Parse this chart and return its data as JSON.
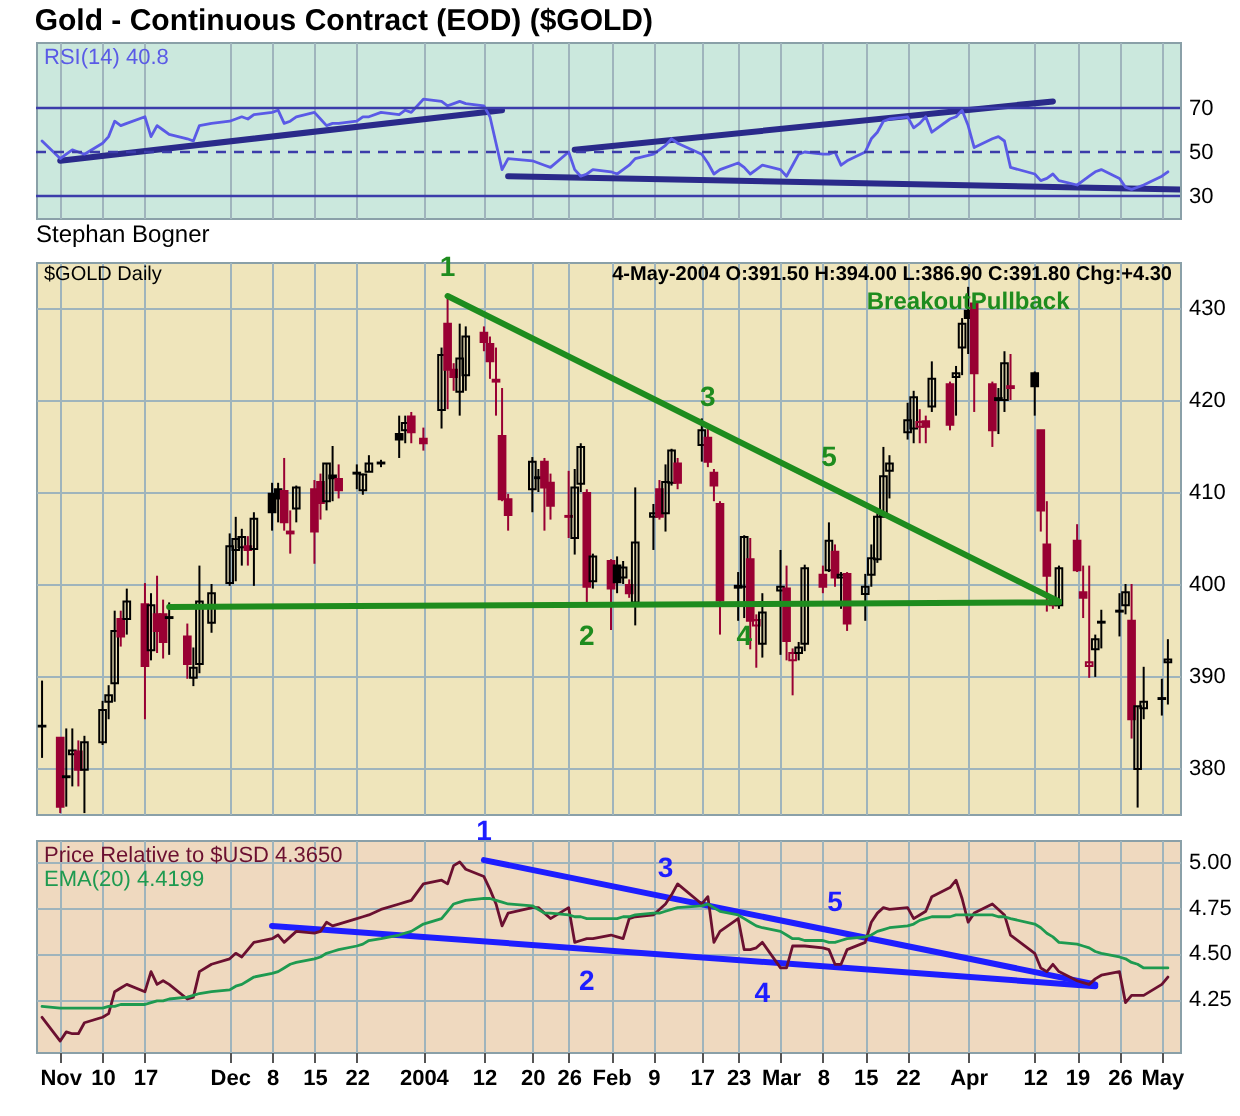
{
  "chart_data": [
    {
      "type": "line",
      "title": "Gold - Continuous Contract (EOD) ($GOLD)",
      "grid": "x",
      "tick_labels": "y",
      "x": [
        "2003-10-31",
        "2003-11-03",
        "2003-11-04",
        "2003-11-05",
        "2003-11-06",
        "2003-11-07",
        "2003-11-10",
        "2003-11-11",
        "2003-11-12",
        "2003-11-13",
        "2003-11-14",
        "2003-11-17",
        "2003-11-18",
        "2003-11-19",
        "2003-11-20",
        "2003-11-21",
        "2003-11-24",
        "2003-11-25",
        "2003-11-26",
        "2003-11-28",
        "2003-12-01",
        "2003-12-02",
        "2003-12-03",
        "2003-12-04",
        "2003-12-05",
        "2003-12-08",
        "2003-12-09",
        "2003-12-10",
        "2003-12-11",
        "2003-12-12",
        "2003-12-15",
        "2003-12-16",
        "2003-12-17",
        "2003-12-18",
        "2003-12-19",
        "2003-12-22",
        "2003-12-23",
        "2003-12-24",
        "2003-12-26",
        "2003-12-29",
        "2003-12-30",
        "2003-12-31",
        "2004-01-02",
        "2004-01-05",
        "2004-01-06",
        "2004-01-07",
        "2004-01-08",
        "2004-01-09",
        "2004-01-12",
        "2004-01-13",
        "2004-01-14",
        "2004-01-15",
        "2004-01-16",
        "2004-01-20",
        "2004-01-21",
        "2004-01-22",
        "2004-01-23",
        "2004-01-26",
        "2004-01-27",
        "2004-01-28",
        "2004-01-29",
        "2004-01-30",
        "2004-02-02",
        "2004-02-03",
        "2004-02-04",
        "2004-02-05",
        "2004-02-06",
        "2004-02-09",
        "2004-02-10",
        "2004-02-11",
        "2004-02-12",
        "2004-02-13",
        "2004-02-17",
        "2004-02-18",
        "2004-02-19",
        "2004-02-20",
        "2004-02-23",
        "2004-02-24",
        "2004-02-25",
        "2004-02-26",
        "2004-02-27",
        "2004-03-01",
        "2004-03-02",
        "2004-03-03",
        "2004-03-04",
        "2004-03-05",
        "2004-03-08",
        "2004-03-09",
        "2004-03-10",
        "2004-03-11",
        "2004-03-12",
        "2004-03-15",
        "2004-03-16",
        "2004-03-17",
        "2004-03-18",
        "2004-03-19",
        "2004-03-22",
        "2004-03-23",
        "2004-03-24",
        "2004-03-25",
        "2004-03-26",
        "2004-03-29",
        "2004-03-30",
        "2004-03-31",
        "2004-04-01",
        "2004-04-02",
        "2004-04-05",
        "2004-04-06",
        "2004-04-07",
        "2004-04-08",
        "2004-04-12",
        "2004-04-13",
        "2004-04-14",
        "2004-04-15",
        "2004-04-16",
        "2004-04-19",
        "2004-04-20",
        "2004-04-21",
        "2004-04-22",
        "2004-04-23",
        "2004-04-26",
        "2004-04-27",
        "2004-04-28",
        "2004-04-29",
        "2004-04-30",
        "2004-05-03",
        "2004-05-04"
      ],
      "series": [
        {
          "name": "RSI(14) 40.8",
          "color": "#5a5ae6",
          "values": [
            55,
            47,
            49,
            51,
            50,
            49,
            54,
            57,
            64,
            62,
            63,
            66,
            57,
            62,
            60,
            58,
            56,
            55,
            62,
            63,
            64,
            65,
            66,
            65,
            67,
            68,
            69,
            63,
            64,
            66,
            68,
            65,
            62,
            63,
            63,
            64,
            66,
            66,
            68,
            67,
            69,
            68,
            74,
            73,
            71,
            72,
            73,
            72,
            71,
            66,
            54,
            42,
            47,
            46,
            45,
            44,
            43,
            50,
            42,
            39,
            40,
            42,
            41,
            40,
            42,
            44,
            47,
            49,
            51,
            53,
            56,
            54,
            49,
            45,
            40,
            42,
            45,
            43,
            40,
            42,
            44,
            42,
            39,
            44,
            49,
            50,
            49,
            49,
            50,
            44,
            46,
            50,
            56,
            59,
            64,
            65,
            66,
            61,
            63,
            66,
            59,
            65,
            66,
            69,
            62,
            52,
            56,
            57,
            55,
            43,
            40,
            37,
            38,
            40,
            37,
            35,
            37,
            39,
            41,
            42,
            38,
            34,
            33,
            34,
            35,
            39,
            41
          ]
        },
        {
          "type": "line",
          "color": "#2a2a8a",
          "x": [
            "2003-11-03",
            "2004-01-15"
          ],
          "values": [
            46,
            69
          ]
        },
        {
          "type": "line",
          "color": "#2a2a8a",
          "x": [
            "2004-01-27",
            "2004-04-15"
          ],
          "values": [
            51,
            73
          ]
        },
        {
          "type": "line",
          "color": "#2a2a8a",
          "x": [
            "2004-01-16",
            "2004-05-06"
          ],
          "values": [
            39,
            33
          ]
        }
      ],
      "ref_lines": [
        {
          "axis": "y",
          "value": 70,
          "color": "#3c3caa"
        },
        {
          "axis": "y",
          "value": 50,
          "color": "#3c3caa",
          "line_style": "dashed"
        },
        {
          "axis": "y",
          "value": 30,
          "color": "#3c3caa"
        }
      ],
      "xlim": [
        "2003-10-30",
        "2004-05-06"
      ],
      "xticks": [
        {
          "value": "2003-11-03",
          "label": null
        },
        {
          "value": "2003-11-10",
          "label": null
        },
        {
          "value": "2003-11-17",
          "label": null
        },
        {
          "value": "2003-12-01",
          "label": null
        },
        {
          "value": "2003-12-08",
          "label": null
        },
        {
          "value": "2003-12-15",
          "label": null
        },
        {
          "value": "2003-12-22",
          "label": null
        },
        {
          "value": "2004-01-02",
          "label": null
        },
        {
          "value": "2004-01-12",
          "label": null
        },
        {
          "value": "2004-01-20",
          "label": null
        },
        {
          "value": "2004-01-26",
          "label": null
        },
        {
          "value": "2004-02-02",
          "label": null
        },
        {
          "value": "2004-02-09",
          "label": null
        },
        {
          "value": "2004-02-17",
          "label": null
        },
        {
          "value": "2004-02-23",
          "label": null
        },
        {
          "value": "2004-03-01",
          "label": null
        },
        {
          "value": "2004-03-08",
          "label": null
        },
        {
          "value": "2004-03-15",
          "label": null
        },
        {
          "value": "2004-03-22",
          "label": null
        },
        {
          "value": "2004-04-01",
          "label": null
        },
        {
          "value": "2004-04-12",
          "label": null
        },
        {
          "value": "2004-04-19",
          "label": null
        },
        {
          "value": "2004-04-26",
          "label": null
        },
        {
          "value": "2004-05-03",
          "label": null
        }
      ],
      "ylim": [
        20,
        100
      ],
      "yticks": [
        30,
        50,
        70
      ]
    },
    {
      "type": "candlestick",
      "title": "Stephan Bogner",
      "grid": true,
      "tick_labels": "y",
      "x": [
        "2003-10-31",
        "2003-11-03",
        "2003-11-04",
        "2003-11-05",
        "2003-11-06",
        "2003-11-07",
        "2003-11-10",
        "2003-11-11",
        "2003-11-12",
        "2003-11-13",
        "2003-11-14",
        "2003-11-17",
        "2003-11-18",
        "2003-11-19",
        "2003-11-20",
        "2003-11-21",
        "2003-11-24",
        "2003-11-25",
        "2003-11-26",
        "2003-11-28",
        "2003-12-01",
        "2003-12-02",
        "2003-12-03",
        "2003-12-04",
        "2003-12-05",
        "2003-12-08",
        "2003-12-09",
        "2003-12-10",
        "2003-12-11",
        "2003-12-12",
        "2003-12-15",
        "2003-12-16",
        "2003-12-17",
        "2003-12-18",
        "2003-12-19",
        "2003-12-22",
        "2003-12-23",
        "2003-12-24",
        "2003-12-26",
        "2003-12-29",
        "2003-12-30",
        "2003-12-31",
        "2004-01-02",
        "2004-01-05",
        "2004-01-06",
        "2004-01-07",
        "2004-01-08",
        "2004-01-09",
        "2004-01-12",
        "2004-01-13",
        "2004-01-14",
        "2004-01-15",
        "2004-01-16",
        "2004-01-20",
        "2004-01-21",
        "2004-01-22",
        "2004-01-23",
        "2004-01-26",
        "2004-01-27",
        "2004-01-28",
        "2004-01-29",
        "2004-01-30",
        "2004-02-02",
        "2004-02-03",
        "2004-02-04",
        "2004-02-05",
        "2004-02-06",
        "2004-02-09",
        "2004-02-10",
        "2004-02-11",
        "2004-02-12",
        "2004-02-13",
        "2004-02-17",
        "2004-02-18",
        "2004-02-19",
        "2004-02-20",
        "2004-02-23",
        "2004-02-24",
        "2004-02-25",
        "2004-02-26",
        "2004-02-27",
        "2004-03-01",
        "2004-03-02",
        "2004-03-03",
        "2004-03-04",
        "2004-03-05",
        "2004-03-08",
        "2004-03-09",
        "2004-03-10",
        "2004-03-11",
        "2004-03-12",
        "2004-03-15",
        "2004-03-16",
        "2004-03-17",
        "2004-03-18",
        "2004-03-19",
        "2004-03-22",
        "2004-03-23",
        "2004-03-24",
        "2004-03-25",
        "2004-03-26",
        "2004-03-29",
        "2004-03-30",
        "2004-03-31",
        "2004-04-01",
        "2004-04-02",
        "2004-04-05",
        "2004-04-06",
        "2004-04-07",
        "2004-04-08",
        "2004-04-12",
        "2004-04-13",
        "2004-04-14",
        "2004-04-15",
        "2004-04-16",
        "2004-04-19",
        "2004-04-20",
        "2004-04-21",
        "2004-04-22",
        "2004-04-23",
        "2004-04-26",
        "2004-04-27",
        "2004-04-28",
        "2004-04-29",
        "2004-04-30",
        "2004-05-03",
        "2004-05-04"
      ],
      "ohlc": [
        [
          384.6,
          389.5,
          381.1,
          384.5
        ],
        [
          383.3,
          383.3,
          375.1,
          375.8
        ],
        [
          379.1,
          384.3,
          375.8,
          379
        ],
        [
          381.5,
          384.3,
          378,
          381.9
        ],
        [
          381.8,
          383,
          378,
          379.8
        ],
        [
          379.8,
          383.5,
          375.1,
          382.8
        ],
        [
          382.8,
          387.3,
          382.5,
          386.3
        ],
        [
          387.2,
          389,
          385.3,
          387.9
        ],
        [
          389.2,
          397.1,
          387.2,
          394.9
        ],
        [
          396.2,
          397.1,
          393.2,
          394.3
        ],
        [
          396.2,
          399.5,
          394.5,
          398.1
        ],
        [
          397.8,
          400.1,
          385.3,
          391.1
        ],
        [
          392.8,
          399,
          391.7,
          397.7
        ],
        [
          396.7,
          400.9,
          392.5,
          394.9
        ],
        [
          396.7,
          398.3,
          391.9,
          393.7
        ],
        [
          396.4,
          398,
          392.3,
          396.3
        ],
        [
          394.3,
          395.7,
          389.7,
          391.3
        ],
        [
          389.8,
          393.1,
          388.9,
          390.9
        ],
        [
          391.3,
          402,
          390.3,
          398.1
        ],
        [
          395.8,
          400,
          394.7,
          399
        ],
        [
          400.1,
          405.5,
          399.8,
          404.1
        ],
        [
          403.7,
          407.3,
          400.3,
          404.9
        ],
        [
          404,
          406,
          402,
          405.1
        ],
        [
          404.1,
          405.2,
          402,
          403.7
        ],
        [
          403.8,
          407.8,
          399.8,
          407.1
        ],
        [
          409.8,
          411,
          405.8,
          407.8
        ],
        [
          410.3,
          411,
          406.7,
          409.3
        ],
        [
          410.1,
          413.7,
          405.8,
          406.7
        ],
        [
          405.7,
          408,
          403.3,
          405.5
        ],
        [
          408.2,
          410.7,
          406.7,
          410.5
        ],
        [
          410.3,
          411.3,
          402.2,
          405.7
        ],
        [
          411.1,
          412,
          407,
          408.8
        ],
        [
          409,
          413.1,
          408,
          413.1
        ],
        [
          411.8,
          415,
          409,
          411.5
        ],
        [
          411.4,
          413,
          409.3,
          410.2
        ],
        [
          412.1,
          413,
          410.3,
          412
        ],
        [
          410.2,
          412,
          409.7,
          411.9
        ],
        [
          412.2,
          414,
          412.2,
          413.1
        ],
        [
          413.2,
          413.5,
          412.7,
          413.1
        ],
        [
          416.3,
          418.3,
          413.7,
          415.7
        ],
        [
          416.7,
          418.3,
          415.3,
          417.5
        ],
        [
          418.2,
          418.7,
          415.3,
          416.5
        ],
        [
          415.8,
          417,
          414.5,
          415.3
        ],
        [
          418.9,
          425.7,
          416.9,
          424.9
        ],
        [
          428.3,
          431.3,
          419,
          423.3
        ],
        [
          423.3,
          424,
          421,
          422.5
        ],
        [
          420.9,
          428.3,
          418.3,
          424.5
        ],
        [
          422.7,
          428,
          421,
          426.9
        ],
        [
          427.3,
          428,
          425.3,
          426.3
        ],
        [
          426.1,
          426.9,
          422.3,
          424.2
        ],
        [
          422.2,
          425.7,
          418.3,
          422
        ],
        [
          416.1,
          421.3,
          409,
          409.2
        ],
        [
          409.2,
          409.8,
          405.8,
          407.5
        ],
        [
          410.3,
          413.8,
          407.8,
          413.3
        ],
        [
          411.6,
          412.5,
          410,
          411.5
        ],
        [
          413.3,
          413.7,
          405.8,
          410.5
        ],
        [
          411,
          412,
          407,
          408.5
        ],
        [
          407.4,
          412.3,
          405,
          407.3
        ],
        [
          405,
          412.5,
          403.2,
          410.5
        ],
        [
          410.9,
          415.3,
          410,
          414.9
        ],
        [
          409.9,
          410.3,
          398,
          399.7
        ],
        [
          400.3,
          403.3,
          399.5,
          403
        ],
        [
          402.5,
          402.7,
          395,
          399.5
        ],
        [
          402,
          403,
          399,
          400.2
        ],
        [
          400.7,
          402.5,
          400,
          401.8
        ],
        [
          399.9,
          400.5,
          398.5,
          399
        ],
        [
          398,
          410.5,
          395.5,
          404.5
        ],
        [
          407.3,
          408.7,
          403.7,
          407.7
        ],
        [
          410.3,
          411.3,
          407,
          407.3
        ],
        [
          407.7,
          413,
          405.7,
          411.1
        ],
        [
          411,
          414.7,
          410.7,
          414.5
        ],
        [
          413.1,
          413.7,
          410.3,
          411
        ],
        [
          415.1,
          418,
          413.3,
          416.7
        ],
        [
          415.9,
          417.3,
          412.7,
          413.3
        ],
        [
          412.1,
          412.5,
          409,
          410.7
        ],
        [
          408.7,
          409,
          394.5,
          398.2
        ],
        [
          399.6,
          401.3,
          396,
          399.8
        ],
        [
          399.7,
          405.3,
          396.3,
          405.1
        ],
        [
          402.7,
          405,
          392.9,
          396
        ],
        [
          395.5,
          396.7,
          390.9,
          396.1
        ],
        [
          393.5,
          399,
          392,
          396.9
        ],
        [
          399.3,
          403.7,
          392.3,
          399.7
        ],
        [
          399.5,
          402,
          391.7,
          393.8
        ],
        [
          391.7,
          393,
          387.9,
          392.5
        ],
        [
          392.5,
          393.7,
          391.7,
          393.1
        ],
        [
          393.5,
          402.1,
          392.7,
          401.7
        ],
        [
          401,
          402,
          399,
          399.7
        ],
        [
          401.5,
          406.7,
          401.3,
          404.7
        ],
        [
          403.5,
          404.3,
          399.7,
          400.7
        ],
        [
          400.7,
          401.3,
          397.3,
          401
        ],
        [
          401.1,
          401.3,
          394.9,
          395.7
        ],
        [
          398.9,
          401.1,
          396,
          399.7
        ],
        [
          401,
          404.3,
          399.7,
          402.8
        ],
        [
          402.7,
          407.7,
          402.3,
          407.3
        ],
        [
          407.3,
          414.9,
          407.3,
          411.7
        ],
        [
          412.3,
          414,
          409.3,
          413.1
        ],
        [
          416.5,
          419.7,
          415.7,
          417.8
        ],
        [
          416.9,
          421,
          415.3,
          420.3
        ],
        [
          417.1,
          419,
          415.3,
          417.6
        ],
        [
          417.7,
          418.3,
          415.3,
          417.1
        ],
        [
          419.3,
          424.2,
          418.7,
          422.3
        ],
        [
          421.7,
          422,
          416.7,
          417.3
        ],
        [
          422.5,
          423.7,
          418.3,
          422.9
        ],
        [
          425.7,
          428.9,
          422.7,
          428.3
        ],
        [
          429.7,
          432.3,
          425,
          428.9
        ],
        [
          430.5,
          430.5,
          418.7,
          422.9
        ],
        [
          421.7,
          422,
          414.9,
          416.7
        ],
        [
          420,
          421.3,
          416.3,
          420.2
        ],
        [
          420,
          425.3,
          418.7,
          424
        ],
        [
          421.3,
          425,
          420,
          421.5
        ],
        [
          422.9,
          423.1,
          418.3,
          421.5
        ],
        [
          416.7,
          416.7,
          405.7,
          408
        ],
        [
          404.3,
          409,
          397,
          400.9
        ],
        [
          397.7,
          398.3,
          397.3,
          398.1
        ],
        [
          397.7,
          402,
          397.3,
          401.7
        ],
        [
          404.7,
          406.5,
          401.3,
          401.5
        ],
        [
          399.1,
          402,
          396.3,
          398.5
        ],
        [
          391.1,
          402,
          389.8,
          391.5
        ],
        [
          392.9,
          394.5,
          389.9,
          394
        ],
        [
          395.9,
          397.2,
          393,
          395.8
        ],
        [
          397.1,
          399,
          394.3,
          397
        ],
        [
          397.7,
          400,
          396.7,
          399.1
        ],
        [
          396,
          400,
          383.2,
          385.3
        ],
        [
          379.9,
          386.7,
          375.7,
          386.7
        ],
        [
          386.5,
          391,
          385.3,
          387.2
        ],
        [
          387.6,
          389.7,
          385.7,
          387.5
        ],
        [
          391.5,
          394,
          386.9,
          391.8
        ]
      ],
      "colors": [
        "#000000",
        "#990033",
        "#000000",
        "#000000",
        "#990033",
        "#000000",
        "#000000",
        "#000000",
        "#000000",
        "#990033",
        "#000000",
        "#990033",
        "#000000",
        "#990033",
        "#990033",
        "#000000",
        "#990033",
        "#000000",
        "#000000",
        "#000000",
        "#000000",
        "#000000",
        "#000000",
        "#990033",
        "#000000",
        "#000000",
        "#000000",
        "#990033",
        "#990033",
        "#000000",
        "#990033",
        "#990033",
        "#000000",
        "#000000",
        "#990033",
        "#000000",
        "#000000",
        "#000000",
        "#000000",
        "#000000",
        "#000000",
        "#990033",
        "#990033",
        "#000000",
        "#990033",
        "#990033",
        "#000000",
        "#000000",
        "#990033",
        "#990033",
        "#990033",
        "#990033",
        "#990033",
        "#000000",
        "#000000",
        "#990033",
        "#990033",
        "#990033",
        "#000000",
        "#000000",
        "#990033",
        "#000000",
        "#990033",
        "#000000",
        "#000000",
        "#990033",
        "#000000",
        "#000000",
        "#990033",
        "#000000",
        "#000000",
        "#990033",
        "#000000",
        "#990033",
        "#990033",
        "#990033",
        "#000000",
        "#000000",
        "#990033",
        "#990033",
        "#000000",
        "#000000",
        "#990033",
        "#990033",
        "#000000",
        "#000000",
        "#990033",
        "#000000",
        "#990033",
        "#000000",
        "#990033",
        "#000000",
        "#000000",
        "#000000",
        "#000000",
        "#000000",
        "#000000",
        "#000000",
        "#990033",
        "#990033",
        "#000000",
        "#990033",
        "#000000",
        "#000000",
        "#000000",
        "#990033",
        "#990033",
        "#000000",
        "#000000",
        "#990033",
        "#000000",
        "#990033",
        "#990033",
        "#990033",
        "#000000",
        "#990033",
        "#990033",
        "#990033",
        "#000000",
        "#000000",
        "#000000",
        "#000000",
        "#990033",
        "#000000",
        "#000000",
        "#000000",
        "#000000"
      ],
      "series": [
        {
          "type": "line",
          "color": "#1e8c1e",
          "x": [
            "2004-01-06",
            "2004-04-16"
          ],
          "values": [
            431.3,
            398.1
          ]
        },
        {
          "type": "line",
          "color": "#1e8c1e",
          "x": [
            "2003-11-21",
            "2004-04-16"
          ],
          "values": [
            397.5,
            398
          ]
        }
      ],
      "annotations": [
        "$GOLD Daily",
        "4-May-2004 O:391.50 H:394.00 L:386.90 C:391.80 Chg:+4.30",
        {
          "text": "1",
          "x": "2004-01-06",
          "y": 431.3
        },
        {
          "text": "2",
          "x": "2004-01-29",
          "y": 397.7
        },
        {
          "text": "3",
          "x": "2004-02-18",
          "y": 417.2
        },
        {
          "text": "4",
          "x": "2004-02-24",
          "y": 397.7
        },
        {
          "text": "5",
          "x": "2004-03-09",
          "y": 410.6
        },
        {
          "text": "BreakoutPullback",
          "x": "2004-04-01",
          "y": 432.3
        }
      ],
      "xlim": [
        "2003-10-30",
        "2004-05-06"
      ],
      "xticks": [
        {
          "value": "2003-11-03",
          "label": null
        },
        {
          "value": "2003-11-10",
          "label": null
        },
        {
          "value": "2003-11-17",
          "label": null
        },
        {
          "value": "2003-12-01",
          "label": null
        },
        {
          "value": "2003-12-08",
          "label": null
        },
        {
          "value": "2003-12-15",
          "label": null
        },
        {
          "value": "2003-12-22",
          "label": null
        },
        {
          "value": "2004-01-02",
          "label": null
        },
        {
          "value": "2004-01-12",
          "label": null
        },
        {
          "value": "2004-01-20",
          "label": null
        },
        {
          "value": "2004-01-26",
          "label": null
        },
        {
          "value": "2004-02-02",
          "label": null
        },
        {
          "value": "2004-02-09",
          "label": null
        },
        {
          "value": "2004-02-17",
          "label": null
        },
        {
          "value": "2004-02-23",
          "label": null
        },
        {
          "value": "2004-03-01",
          "label": null
        },
        {
          "value": "2004-03-08",
          "label": null
        },
        {
          "value": "2004-03-15",
          "label": null
        },
        {
          "value": "2004-03-22",
          "label": null
        },
        {
          "value": "2004-04-01",
          "label": null
        },
        {
          "value": "2004-04-12",
          "label": null
        },
        {
          "value": "2004-04-19",
          "label": null
        },
        {
          "value": "2004-04-26",
          "label": null
        },
        {
          "value": "2004-05-03",
          "label": null
        }
      ],
      "ylim": [
        375,
        435
      ],
      "yticks": [
        380,
        390,
        400,
        410,
        420,
        430
      ]
    },
    {
      "type": "line",
      "grid": true,
      "x": [
        "2003-10-31",
        "2003-11-03",
        "2003-11-04",
        "2003-11-05",
        "2003-11-06",
        "2003-11-07",
        "2003-11-10",
        "2003-11-11",
        "2003-11-12",
        "2003-11-13",
        "2003-11-14",
        "2003-11-17",
        "2003-11-18",
        "2003-11-19",
        "2003-11-20",
        "2003-11-21",
        "2003-11-24",
        "2003-11-25",
        "2003-11-26",
        "2003-11-28",
        "2003-12-01",
        "2003-12-02",
        "2003-12-03",
        "2003-12-04",
        "2003-12-05",
        "2003-12-08",
        "2003-12-09",
        "2003-12-10",
        "2003-12-11",
        "2003-12-12",
        "2003-12-15",
        "2003-12-16",
        "2003-12-17",
        "2003-12-18",
        "2003-12-19",
        "2003-12-22",
        "2003-12-23",
        "2003-12-24",
        "2003-12-26",
        "2003-12-29",
        "2003-12-30",
        "2003-12-31",
        "2004-01-02",
        "2004-01-05",
        "2004-01-06",
        "2004-01-07",
        "2004-01-08",
        "2004-01-09",
        "2004-01-12",
        "2004-01-13",
        "2004-01-14",
        "2004-01-15",
        "2004-01-16",
        "2004-01-20",
        "2004-01-21",
        "2004-01-22",
        "2004-01-23",
        "2004-01-26",
        "2004-01-27",
        "2004-01-28",
        "2004-01-29",
        "2004-01-30",
        "2004-02-02",
        "2004-02-03",
        "2004-02-04",
        "2004-02-05",
        "2004-02-06",
        "2004-02-09",
        "2004-02-10",
        "2004-02-11",
        "2004-02-12",
        "2004-02-13",
        "2004-02-17",
        "2004-02-18",
        "2004-02-19",
        "2004-02-20",
        "2004-02-23",
        "2004-02-24",
        "2004-02-25",
        "2004-02-26",
        "2004-02-27",
        "2004-03-01",
        "2004-03-02",
        "2004-03-03",
        "2004-03-04",
        "2004-03-05",
        "2004-03-08",
        "2004-03-09",
        "2004-03-10",
        "2004-03-11",
        "2004-03-12",
        "2004-03-15",
        "2004-03-16",
        "2004-03-17",
        "2004-03-18",
        "2004-03-19",
        "2004-03-22",
        "2004-03-23",
        "2004-03-24",
        "2004-03-25",
        "2004-03-26",
        "2004-03-29",
        "2004-03-30",
        "2004-03-31",
        "2004-04-01",
        "2004-04-02",
        "2004-04-05",
        "2004-04-06",
        "2004-04-07",
        "2004-04-08",
        "2004-04-12",
        "2004-04-13",
        "2004-04-14",
        "2004-04-15",
        "2004-04-16",
        "2004-04-19",
        "2004-04-20",
        "2004-04-21",
        "2004-04-22",
        "2004-04-23",
        "2004-04-26",
        "2004-04-27",
        "2004-04-28",
        "2004-04-29",
        "2004-04-30",
        "2004-05-03",
        "2004-05-04"
      ],
      "series": [
        {
          "name": "Price Relative to $USD 4.3650",
          "color": "#6b1030",
          "values": [
            4.15,
            4.02,
            4.07,
            4.06,
            4.06,
            4.12,
            4.15,
            4.17,
            4.29,
            4.31,
            4.33,
            4.29,
            4.4,
            4.33,
            4.35,
            4.33,
            4.25,
            4.26,
            4.4,
            4.44,
            4.47,
            4.5,
            4.48,
            4.52,
            4.56,
            4.58,
            4.6,
            4.56,
            4.59,
            4.62,
            4.61,
            4.62,
            4.67,
            4.65,
            4.66,
            4.69,
            4.7,
            4.71,
            4.74,
            4.77,
            4.78,
            4.79,
            4.88,
            4.9,
            4.88,
            4.98,
            5,
            4.96,
            4.92,
            4.85,
            4.77,
            4.65,
            4.72,
            4.75,
            4.75,
            4.72,
            4.69,
            4.75,
            4.56,
            4.57,
            4.58,
            4.58,
            4.6,
            4.59,
            4.58,
            4.69,
            4.7,
            4.71,
            4.74,
            4.77,
            4.82,
            4.88,
            4.77,
            4.81,
            4.56,
            4.62,
            4.69,
            4.52,
            4.52,
            4.53,
            4.56,
            4.42,
            4.42,
            4.54,
            4.54,
            4.54,
            4.53,
            4.52,
            4.44,
            4.44,
            4.52,
            4.56,
            4.67,
            4.72,
            4.75,
            4.74,
            4.75,
            4.69,
            4.71,
            4.73,
            4.81,
            4.86,
            4.9,
            4.8,
            4.67,
            4.72,
            4.77,
            4.74,
            4.71,
            4.6,
            4.5,
            4.42,
            4.4,
            4.44,
            4.4,
            4.35,
            4.34,
            4.33,
            4.36,
            4.38,
            4.4,
            4.23,
            4.27,
            4.27,
            4.27,
            4.33,
            4.37
          ]
        },
        {
          "name": "EMA(20) 4.4199",
          "color": "#1e9a50",
          "values": [
            4.21,
            4.2,
            4.2,
            4.2,
            4.2,
            4.2,
            4.2,
            4.21,
            4.21,
            4.22,
            4.22,
            4.22,
            4.23,
            4.24,
            4.24,
            4.25,
            4.26,
            4.27,
            4.28,
            4.29,
            4.3,
            4.32,
            4.33,
            4.35,
            4.37,
            4.39,
            4.4,
            4.42,
            4.44,
            4.45,
            4.47,
            4.48,
            4.5,
            4.51,
            4.52,
            4.54,
            4.55,
            4.57,
            4.58,
            4.6,
            4.61,
            4.62,
            4.66,
            4.69,
            4.73,
            4.77,
            4.78,
            4.79,
            4.8,
            4.8,
            4.79,
            4.78,
            4.77,
            4.76,
            4.74,
            4.72,
            4.72,
            4.71,
            4.7,
            4.7,
            4.69,
            4.69,
            4.69,
            4.69,
            4.7,
            4.7,
            4.71,
            4.72,
            4.72,
            4.73,
            4.74,
            4.75,
            4.76,
            4.77,
            4.75,
            4.73,
            4.71,
            4.69,
            4.67,
            4.65,
            4.64,
            4.62,
            4.6,
            4.58,
            4.58,
            4.57,
            4.57,
            4.56,
            4.56,
            4.57,
            4.58,
            4.59,
            4.6,
            4.62,
            4.63,
            4.64,
            4.65,
            4.66,
            4.68,
            4.69,
            4.7,
            4.7,
            4.71,
            4.71,
            4.71,
            4.71,
            4.71,
            4.7,
            4.7,
            4.69,
            4.66,
            4.64,
            4.61,
            4.59,
            4.56,
            4.55,
            4.54,
            4.53,
            4.51,
            4.5,
            4.48,
            4.47,
            4.45,
            4.44,
            4.42,
            4.42,
            4.42
          ]
        },
        {
          "type": "line",
          "color": "#1e1eff",
          "x": [
            "2004-01-12",
            "2004-04-22"
          ],
          "values": [
            5.01,
            4.33
          ]
        },
        {
          "type": "line",
          "color": "#1e1eff",
          "x": [
            "2003-12-08",
            "2004-04-22"
          ],
          "values": [
            4.65,
            4.32
          ]
        }
      ],
      "annotations": [
        {
          "text": "1",
          "x": "2004-01-12",
          "y": 5.01
        },
        {
          "text": "2",
          "x": "2004-01-29",
          "y": 4.52
        },
        {
          "text": "3",
          "x": "2004-02-11",
          "y": 4.81
        },
        {
          "text": "4",
          "x": "2004-02-27",
          "y": 4.45
        },
        {
          "text": "5",
          "x": "2004-03-10",
          "y": 4.62
        }
      ],
      "xlim": [
        "2003-10-30",
        "2004-05-06"
      ],
      "xticks": [
        {
          "value": "2003-11-03",
          "label": "Nov"
        },
        {
          "value": "2003-11-10",
          "label": "10"
        },
        {
          "value": "2003-11-17",
          "label": "17"
        },
        {
          "value": "2003-12-01",
          "label": "Dec"
        },
        {
          "value": "2003-12-08",
          "label": "8"
        },
        {
          "value": "2003-12-15",
          "label": "15"
        },
        {
          "value": "2003-12-22",
          "label": "22"
        },
        {
          "value": "2004-01-02",
          "label": "2004"
        },
        {
          "value": "2004-01-12",
          "label": "12"
        },
        {
          "value": "2004-01-20",
          "label": "20"
        },
        {
          "value": "2004-01-26",
          "label": "26"
        },
        {
          "value": "2004-02-02",
          "label": "Feb"
        },
        {
          "value": "2004-02-09",
          "label": "9"
        },
        {
          "value": "2004-02-17",
          "label": "17"
        },
        {
          "value": "2004-02-23",
          "label": "23"
        },
        {
          "value": "2004-03-01",
          "label": "Mar"
        },
        {
          "value": "2004-03-08",
          "label": "8"
        },
        {
          "value": "2004-03-15",
          "label": "15"
        },
        {
          "value": "2004-03-22",
          "label": "22"
        },
        {
          "value": "2004-04-01",
          "label": "Apr"
        },
        {
          "value": "2004-04-12",
          "label": "12"
        },
        {
          "value": "2004-04-19",
          "label": "19"
        },
        {
          "value": "2004-04-26",
          "label": "26"
        },
        {
          "value": "2004-05-03",
          "label": "May"
        }
      ],
      "ylim": [
        3.96,
        5.12
      ],
      "yticks": [
        4.25,
        {
          "value": 4.5,
          "label": "4.50"
        },
        4.75,
        {
          "value": 5,
          "label": "5.00"
        }
      ]
    }
  ]
}
